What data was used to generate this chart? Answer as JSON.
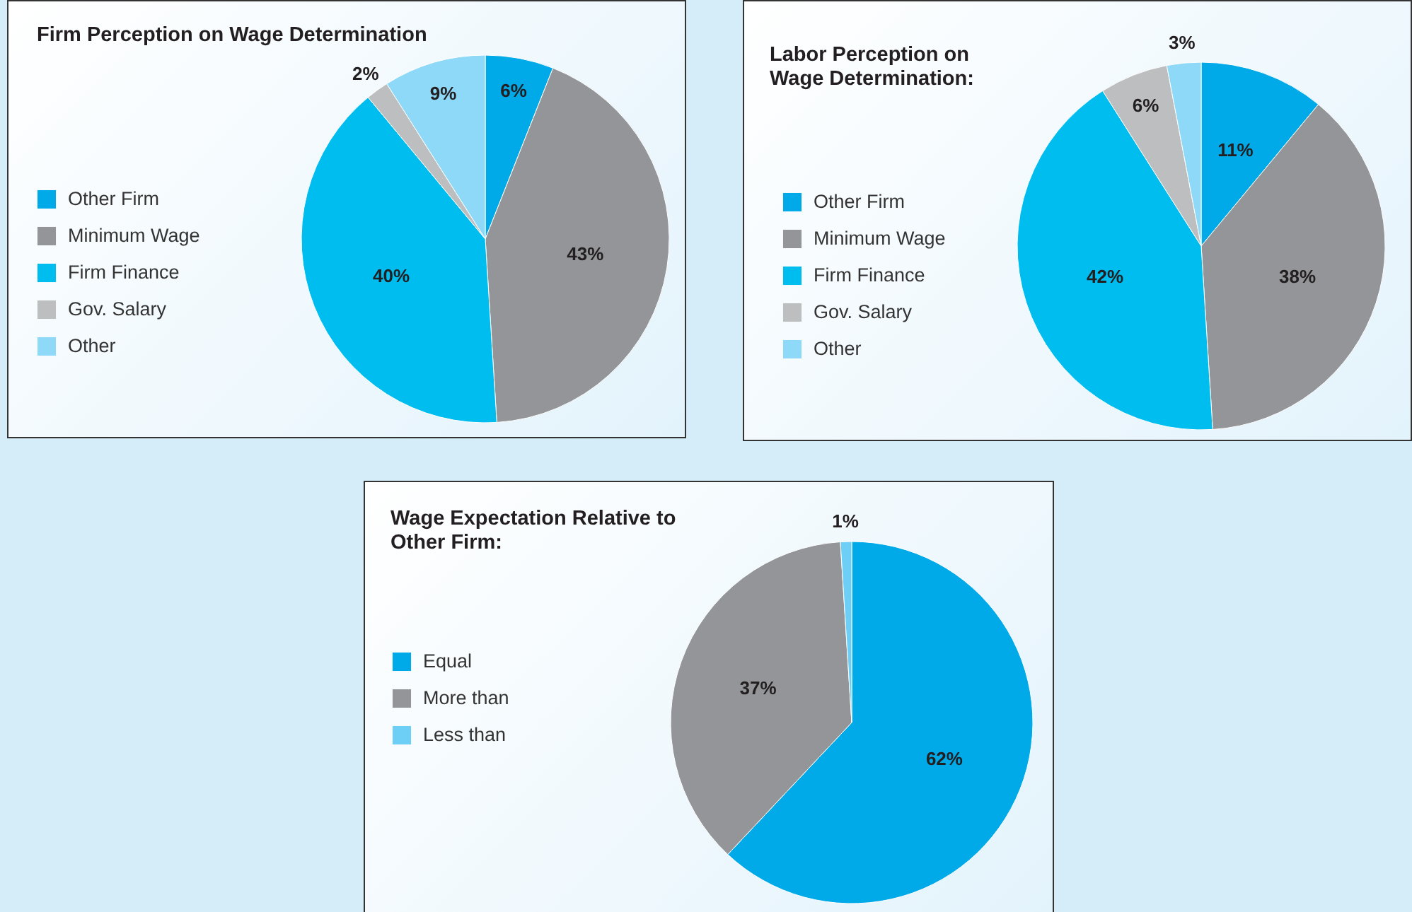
{
  "chart_data": [
    {
      "type": "pie",
      "title": "Firm Perception on Wage Determination",
      "categories": [
        "Other Firm",
        "Minimum Wage",
        "Firm Finance",
        "Gov. Salary",
        "Other"
      ],
      "values": [
        6,
        43,
        40,
        2,
        9
      ],
      "colors": [
        "#00a9e8",
        "#939598",
        "#00bdf0",
        "#bcbec0",
        "#8ed8f8"
      ],
      "value_labels": [
        "6%",
        "43%",
        "40%",
        "2%",
        "9%"
      ],
      "legend": "left"
    },
    {
      "type": "pie",
      "title": "Labor Perception on Wage Determination:",
      "categories": [
        "Other Firm",
        "Minimum Wage",
        "Firm Finance",
        "Gov. Salary",
        "Other"
      ],
      "values": [
        11,
        38,
        42,
        6,
        3
      ],
      "colors": [
        "#00a9e8",
        "#939598",
        "#00bdf0",
        "#bcbec0",
        "#8ed8f8"
      ],
      "value_labels": [
        "11%",
        "38%",
        "42%",
        "6%",
        "3%"
      ],
      "legend": "left"
    },
    {
      "type": "pie",
      "title": "Wage Expectation Relative to Other Firm:",
      "categories": [
        "Equal",
        "More than",
        "Less than"
      ],
      "values": [
        62,
        37,
        1
      ],
      "colors": [
        "#00a9e8",
        "#939598",
        "#6dcff6"
      ],
      "value_labels": [
        "62%",
        "37%",
        "1%"
      ],
      "legend": "left"
    }
  ]
}
